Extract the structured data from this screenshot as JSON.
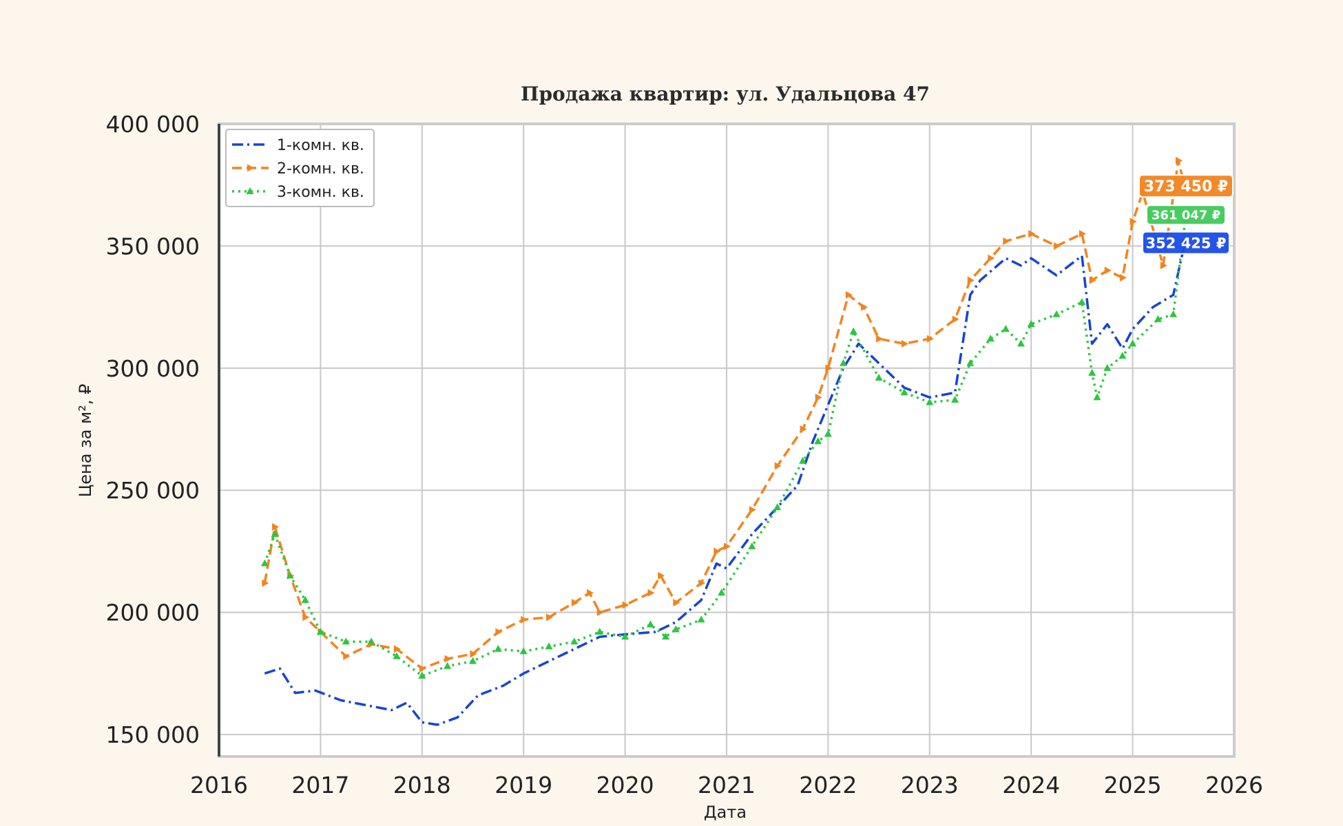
{
  "chart_data": {
    "type": "line",
    "title": "Продажа квартир: ул. Удальцова 47",
    "xlabel": "Дата",
    "ylabel": "Цена за м², ₽",
    "xlim": [
      2016,
      2026
    ],
    "ylim": [
      141000,
      400000
    ],
    "x_ticks": [
      "2016",
      "2017",
      "2018",
      "2019",
      "2020",
      "2021",
      "2022",
      "2023",
      "2024",
      "2025",
      "2026"
    ],
    "y_ticks": [
      "150 000",
      "200 000",
      "250 000",
      "300 000",
      "350 000",
      "400 000"
    ],
    "grid": true,
    "legend_position": "top-left",
    "series": [
      {
        "name": "1-комн. кв.",
        "color": "#1743d6",
        "line_style": "dash-dot",
        "marker": "none",
        "x": [
          2016.45,
          2016.6,
          2016.75,
          2016.95,
          2017.2,
          2017.45,
          2017.7,
          2017.85,
          2018.0,
          2018.15,
          2018.35,
          2018.55,
          2018.8,
          2019.0,
          2019.25,
          2019.5,
          2019.75,
          2020.0,
          2020.3,
          2020.5,
          2020.75,
          2020.9,
          2021.0,
          2021.25,
          2021.5,
          2021.7,
          2021.85,
          2022.0,
          2022.15,
          2022.3,
          2022.5,
          2022.75,
          2023.0,
          2023.25,
          2023.4,
          2023.5,
          2023.75,
          2023.9,
          2024.0,
          2024.25,
          2024.5,
          2024.6,
          2024.75,
          2024.9,
          2025.0,
          2025.2,
          2025.4,
          2025.52
        ],
        "y": [
          175000,
          177000,
          167000,
          168000,
          164000,
          162000,
          160000,
          163000,
          155000,
          154000,
          157000,
          166000,
          170000,
          175000,
          180000,
          185000,
          190000,
          191000,
          192000,
          196000,
          205000,
          220000,
          218000,
          232000,
          243000,
          252000,
          270000,
          285000,
          300000,
          310000,
          302000,
          292000,
          288000,
          290000,
          330000,
          336000,
          345000,
          342000,
          345000,
          338000,
          346000,
          310000,
          318000,
          308000,
          316000,
          325000,
          330000,
          352425
        ]
      },
      {
        "name": "2-комн. кв.",
        "color": "#f2841e",
        "line_style": "dashed",
        "marker": "triangle-right",
        "x": [
          2016.45,
          2016.55,
          2016.7,
          2016.85,
          2017.0,
          2017.25,
          2017.5,
          2017.75,
          2018.0,
          2018.25,
          2018.5,
          2018.75,
          2019.0,
          2019.25,
          2019.5,
          2019.65,
          2019.75,
          2020.0,
          2020.25,
          2020.35,
          2020.5,
          2020.75,
          2020.9,
          2021.0,
          2021.25,
          2021.5,
          2021.75,
          2021.9,
          2022.0,
          2022.2,
          2022.35,
          2022.5,
          2022.75,
          2023.0,
          2023.25,
          2023.4,
          2023.6,
          2023.75,
          2024.0,
          2024.25,
          2024.5,
          2024.6,
          2024.75,
          2024.9,
          2025.0,
          2025.1,
          2025.3,
          2025.45,
          2025.52
        ],
        "y": [
          212000,
          235000,
          215000,
          198000,
          192000,
          182000,
          187000,
          185000,
          177000,
          181000,
          183000,
          192000,
          197000,
          198000,
          204000,
          208000,
          200000,
          203000,
          208000,
          215000,
          204000,
          212000,
          225000,
          227000,
          242000,
          260000,
          275000,
          288000,
          300000,
          330000,
          325000,
          312000,
          310000,
          312000,
          320000,
          336000,
          345000,
          352000,
          355000,
          350000,
          355000,
          336000,
          340000,
          337000,
          360000,
          372000,
          342000,
          385000,
          373450
        ]
      },
      {
        "name": "3-комн. кв.",
        "color": "#2cc640",
        "line_style": "dotted",
        "marker": "triangle-up",
        "x": [
          2016.45,
          2016.55,
          2016.7,
          2016.85,
          2017.0,
          2017.25,
          2017.5,
          2017.75,
          2018.0,
          2018.25,
          2018.5,
          2018.75,
          2019.0,
          2019.25,
          2019.5,
          2019.75,
          2020.0,
          2020.25,
          2020.4,
          2020.5,
          2020.75,
          2020.95,
          2021.25,
          2021.5,
          2021.75,
          2021.9,
          2022.0,
          2022.15,
          2022.25,
          2022.5,
          2022.75,
          2023.0,
          2023.25,
          2023.4,
          2023.6,
          2023.75,
          2023.9,
          2024.0,
          2024.25,
          2024.5,
          2024.6,
          2024.65,
          2024.75,
          2024.9,
          2025.0,
          2025.25,
          2025.4,
          2025.52
        ],
        "y": [
          220000,
          232000,
          215000,
          205000,
          192000,
          188000,
          188000,
          182000,
          174000,
          178000,
          180000,
          185000,
          184000,
          186000,
          188000,
          192000,
          190000,
          195000,
          190000,
          193000,
          197000,
          208000,
          227000,
          243000,
          262000,
          270000,
          273000,
          302000,
          315000,
          296000,
          290000,
          286000,
          287000,
          302000,
          312000,
          316000,
          310000,
          318000,
          322000,
          327000,
          298000,
          288000,
          300000,
          305000,
          310000,
          320000,
          322000,
          361047
        ]
      }
    ],
    "last_value_badges": [
      {
        "text": "373 450 ₽",
        "color": "#f2841e",
        "value": 373450
      },
      {
        "text": "361 047 ₽",
        "color": "#3fc95a",
        "value": 361047
      },
      {
        "text": "352 425 ₽",
        "color": "#1a4be8",
        "value": 352425
      }
    ]
  }
}
